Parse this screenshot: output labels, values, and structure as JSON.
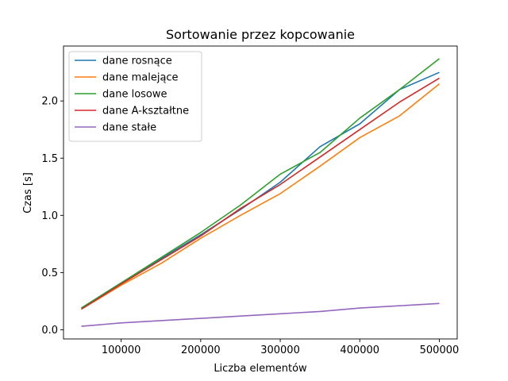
{
  "chart_data": {
    "type": "line",
    "title": "Sortowanie przez kopcowanie",
    "xlabel": "Liczba elementów",
    "ylabel": "Czas [s]",
    "xlim": [
      27500,
      522500
    ],
    "ylim": [
      -0.08,
      2.48
    ],
    "xticks": [
      100000,
      200000,
      300000,
      400000,
      500000
    ],
    "xtick_labels": [
      "100000",
      "200000",
      "300000",
      "400000",
      "500000"
    ],
    "yticks": [
      0.0,
      0.5,
      1.0,
      1.5,
      2.0
    ],
    "ytick_labels": [
      "0.0",
      "0.5",
      "1.0",
      "1.5",
      "2.0"
    ],
    "grid": false,
    "legend_position": "top-left",
    "x": [
      50000,
      100000,
      150000,
      200000,
      250000,
      300000,
      350000,
      400000,
      450000,
      500000
    ],
    "series": [
      {
        "name": "dane rosnące",
        "color": "#1f77b4",
        "values": [
          0.19,
          0.41,
          0.62,
          0.83,
          1.05,
          1.29,
          1.6,
          1.8,
          2.1,
          2.25
        ]
      },
      {
        "name": "dane malejące",
        "color": "#ff7f0e",
        "values": [
          0.18,
          0.39,
          0.58,
          0.8,
          1.0,
          1.19,
          1.43,
          1.68,
          1.87,
          2.15
        ]
      },
      {
        "name": "dane losowe",
        "color": "#2ca02c",
        "values": [
          0.19,
          0.41,
          0.63,
          0.85,
          1.09,
          1.36,
          1.55,
          1.85,
          2.1,
          2.37
        ]
      },
      {
        "name": "dane A-kształtne",
        "color": "#d62728",
        "values": [
          0.18,
          0.4,
          0.61,
          0.82,
          1.06,
          1.27,
          1.51,
          1.75,
          1.99,
          2.2
        ]
      },
      {
        "name": "dane stałe",
        "color": "#9467bd",
        "values": [
          0.03,
          0.06,
          0.08,
          0.1,
          0.12,
          0.14,
          0.16,
          0.19,
          0.21,
          0.23
        ]
      }
    ]
  }
}
